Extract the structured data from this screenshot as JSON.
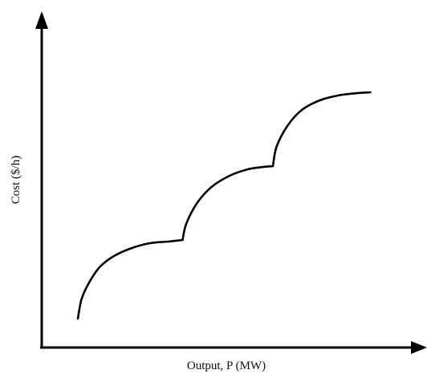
{
  "chart_data": {
    "type": "line",
    "title": "",
    "xlabel": "Output, P (MW)",
    "ylabel": "Cost ($/h)",
    "xlim": [
      0,
      10
    ],
    "ylim": [
      0,
      10
    ],
    "grid": false,
    "legend": "none",
    "series": [
      {
        "segments": [
          {
            "x": [
              1.0,
              1.1,
              1.3,
              1.6,
              2.0,
              2.5,
              3.0,
              3.5,
              3.9
            ],
            "y": [
              0.9,
              1.5,
              2.0,
              2.5,
              2.85,
              3.1,
              3.25,
              3.3,
              3.35
            ]
          },
          {
            "x": [
              3.9,
              4.0,
              4.3,
              4.7,
              5.2,
              5.7,
              6.1,
              6.4
            ],
            "y": [
              3.35,
              3.85,
              4.5,
              5.0,
              5.35,
              5.55,
              5.62,
              5.65
            ]
          },
          {
            "x": [
              6.4,
              6.5,
              6.8,
              7.2,
              7.7,
              8.2,
              8.7,
              9.1
            ],
            "y": [
              5.65,
              6.25,
              6.9,
              7.4,
              7.7,
              7.85,
              7.92,
              7.95
            ]
          }
        ]
      }
    ],
    "colors": {
      "line": "#000000",
      "axis": "#000000",
      "background": "#ffffff"
    }
  }
}
